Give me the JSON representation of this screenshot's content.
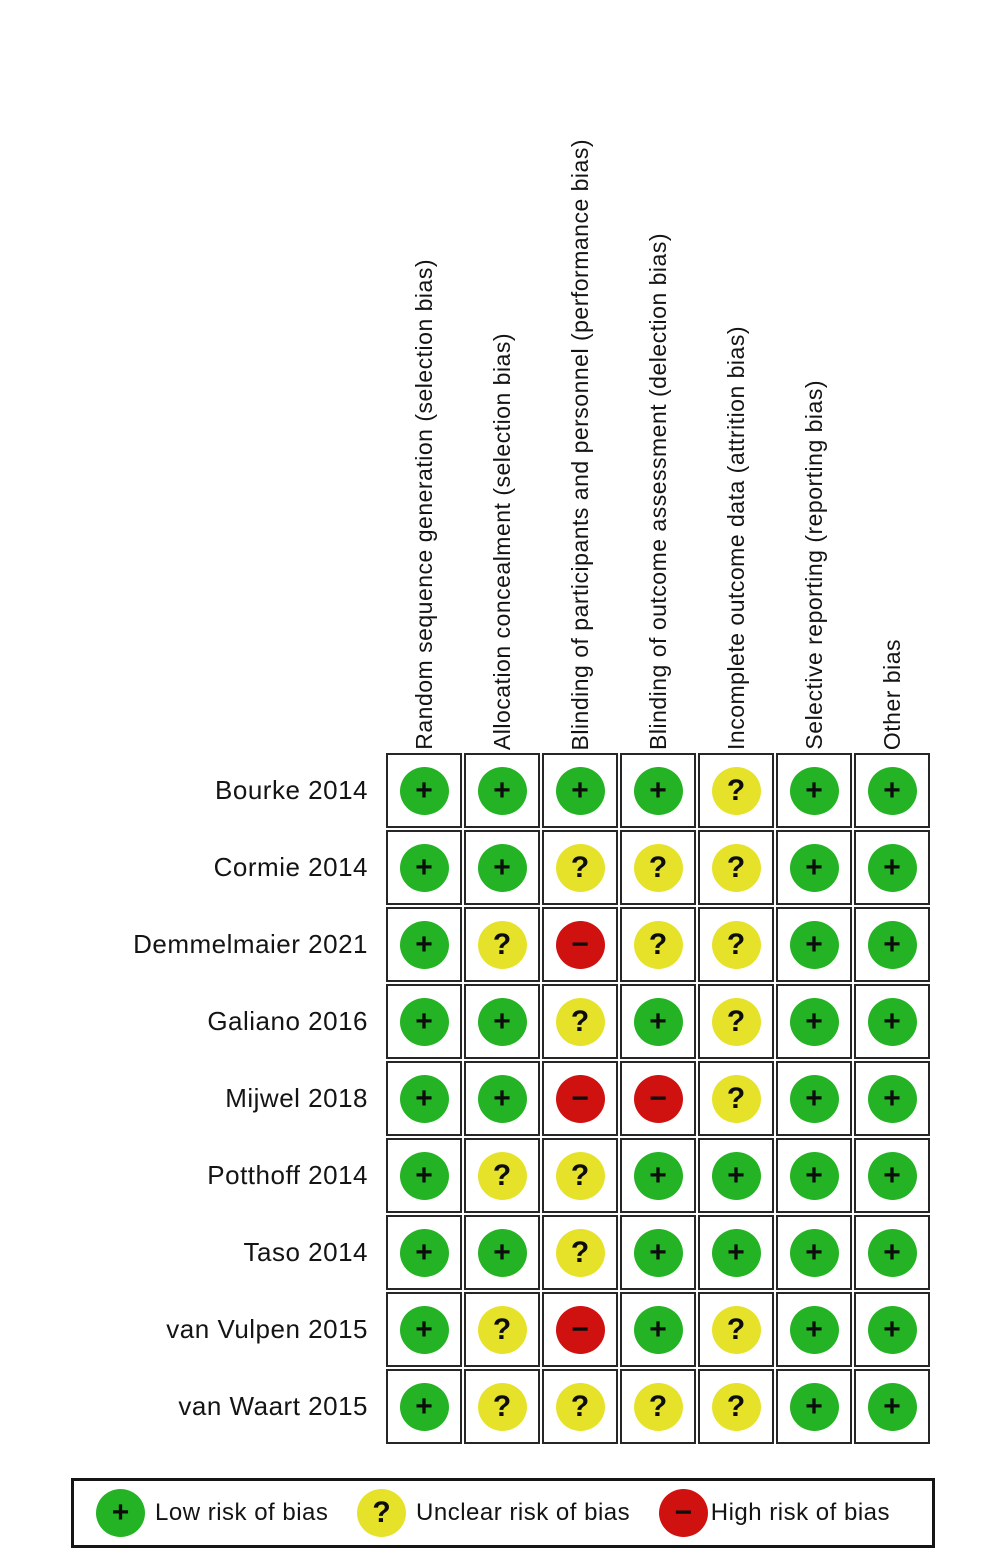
{
  "columns": [
    "Random sequence generation (selection bias)",
    "Allocation concealment (selection bias)",
    "Blinding of participants and personnel (performance bias)",
    "Blinding of outcome assessment (delection bias)",
    "Incomplete outcome data (attrition bias)",
    "Selective reporting (reporting bias)",
    "Other bias"
  ],
  "studies": [
    {
      "label": "Bourke 2014",
      "ratings": [
        "low",
        "low",
        "low",
        "low",
        "unclear",
        "low",
        "low"
      ]
    },
    {
      "label": "Cormie 2014",
      "ratings": [
        "low",
        "low",
        "unclear",
        "unclear",
        "unclear",
        "low",
        "low"
      ]
    },
    {
      "label": "Demmelmaier 2021",
      "ratings": [
        "low",
        "unclear",
        "high",
        "unclear",
        "unclear",
        "low",
        "low"
      ]
    },
    {
      "label": "Galiano 2016",
      "ratings": [
        "low",
        "low",
        "unclear",
        "low",
        "unclear",
        "low",
        "low"
      ]
    },
    {
      "label": "Mijwel 2018",
      "ratings": [
        "low",
        "low",
        "high",
        "high",
        "unclear",
        "low",
        "low"
      ]
    },
    {
      "label": "Potthoff 2014",
      "ratings": [
        "low",
        "unclear",
        "unclear",
        "low",
        "low",
        "low",
        "low"
      ]
    },
    {
      "label": "Taso 2014",
      "ratings": [
        "low",
        "low",
        "unclear",
        "low",
        "low",
        "low",
        "low"
      ]
    },
    {
      "label": "van Vulpen 2015",
      "ratings": [
        "low",
        "unclear",
        "high",
        "low",
        "unclear",
        "low",
        "low"
      ]
    },
    {
      "label": "van Waart 2015",
      "ratings": [
        "low",
        "unclear",
        "unclear",
        "unclear",
        "unclear",
        "low",
        "low"
      ]
    }
  ],
  "ratings_meta": {
    "low": {
      "symbol": "+",
      "color": "#24B324",
      "label": "Low risk of bias"
    },
    "unclear": {
      "symbol": "?",
      "color": "#E6E22A",
      "label": "Unclear risk of bias"
    },
    "high": {
      "symbol": "−",
      "color": "#CF1110",
      "label": "High risk of bias"
    }
  },
  "legend": [
    {
      "rating": "low",
      "label": "Low risk of bias"
    },
    {
      "rating": "unclear",
      "label": "Unclear risk of bias"
    },
    {
      "rating": "high",
      "label": "High risk of bias"
    }
  ],
  "chart_data": {
    "type": "heatmap",
    "rows": [
      "Bourke 2014",
      "Cormie 2014",
      "Demmelmaier 2021",
      "Galiano 2016",
      "Mijwel 2018",
      "Potthoff 2014",
      "Taso 2014",
      "van Vulpen 2015",
      "van Waart 2015"
    ],
    "columns": [
      "Random sequence generation (selection bias)",
      "Allocation concealment (selection bias)",
      "Blinding of participants and personnel (performance bias)",
      "Blinding of outcome assessment (delection bias)",
      "Incomplete outcome data (attrition bias)",
      "Selective reporting (reporting bias)",
      "Other bias"
    ],
    "values": [
      [
        "+",
        "+",
        "+",
        "+",
        "?",
        "+",
        "+"
      ],
      [
        "+",
        "+",
        "?",
        "?",
        "?",
        "+",
        "+"
      ],
      [
        "+",
        "?",
        "−",
        "?",
        "?",
        "+",
        "+"
      ],
      [
        "+",
        "+",
        "?",
        "+",
        "?",
        "+",
        "+"
      ],
      [
        "+",
        "+",
        "−",
        "−",
        "?",
        "+",
        "+"
      ],
      [
        "+",
        "?",
        "?",
        "+",
        "+",
        "+",
        "+"
      ],
      [
        "+",
        "+",
        "?",
        "+",
        "+",
        "+",
        "+"
      ],
      [
        "+",
        "?",
        "−",
        "+",
        "?",
        "+",
        "+"
      ],
      [
        "+",
        "?",
        "?",
        "?",
        "?",
        "+",
        "+"
      ]
    ],
    "value_legend": {
      "+": "Low risk of bias",
      "?": "Unclear risk of bias",
      "−": "High risk of bias"
    },
    "legend_position": "bottom",
    "grid": true
  }
}
